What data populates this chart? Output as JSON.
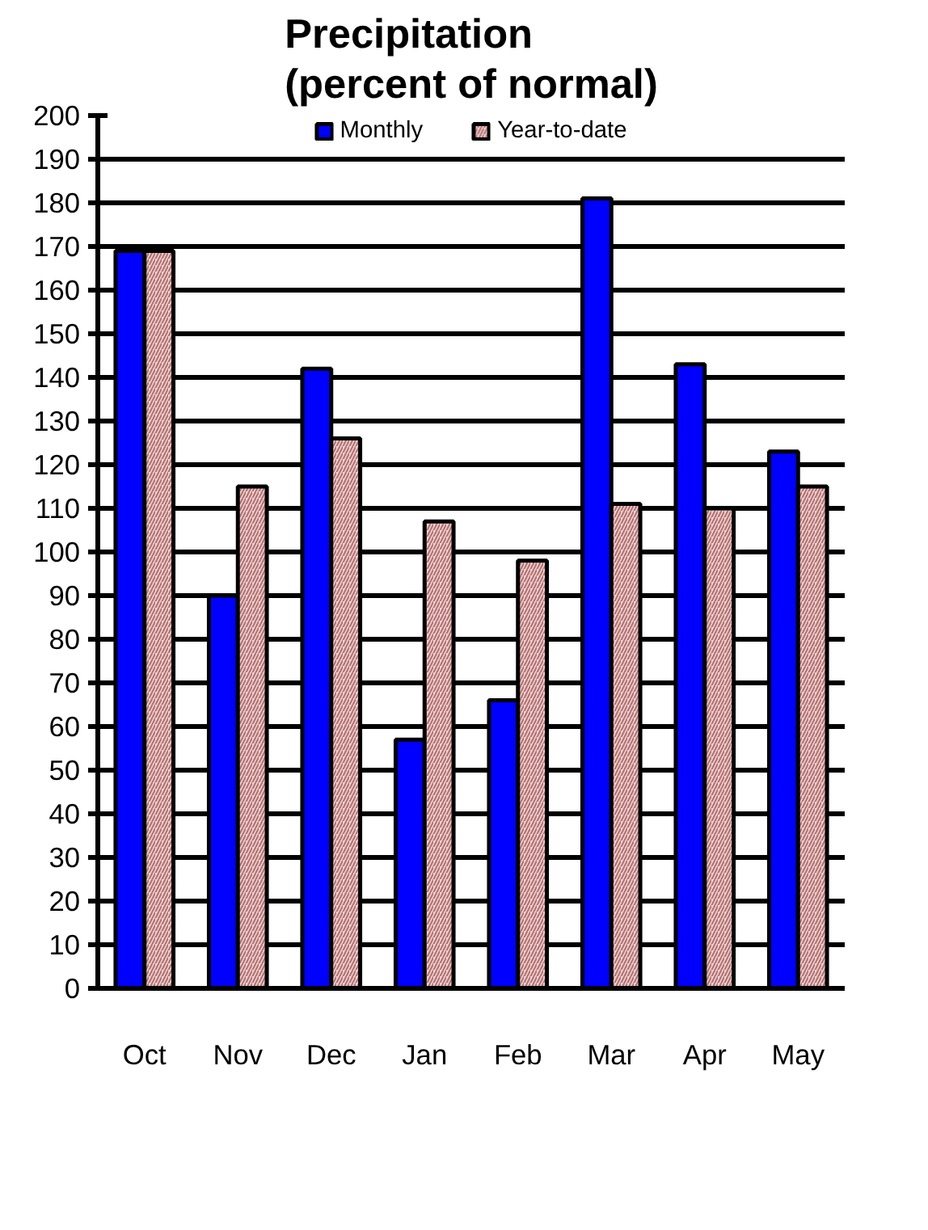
{
  "chart_data": {
    "type": "bar",
    "title": "Precipitation\n(percent of normal)",
    "categories": [
      "Oct",
      "Nov",
      "Dec",
      "Jan",
      "Feb",
      "Mar",
      "Apr",
      "May"
    ],
    "series": [
      {
        "name": "Monthly",
        "color": "#0000ff",
        "values": [
          169,
          90,
          142,
          57,
          66,
          181,
          143,
          123
        ]
      },
      {
        "name": "Year-to-date",
        "color": "#f0d0d0",
        "values": [
          169,
          115,
          126,
          107,
          98,
          111,
          110,
          115
        ]
      }
    ],
    "ylim": [
      0,
      200
    ],
    "yticks": [
      0,
      10,
      20,
      30,
      40,
      50,
      60,
      70,
      80,
      90,
      100,
      110,
      120,
      130,
      140,
      150,
      160,
      170,
      180,
      190,
      200
    ],
    "grid": "y",
    "legend": "top"
  }
}
